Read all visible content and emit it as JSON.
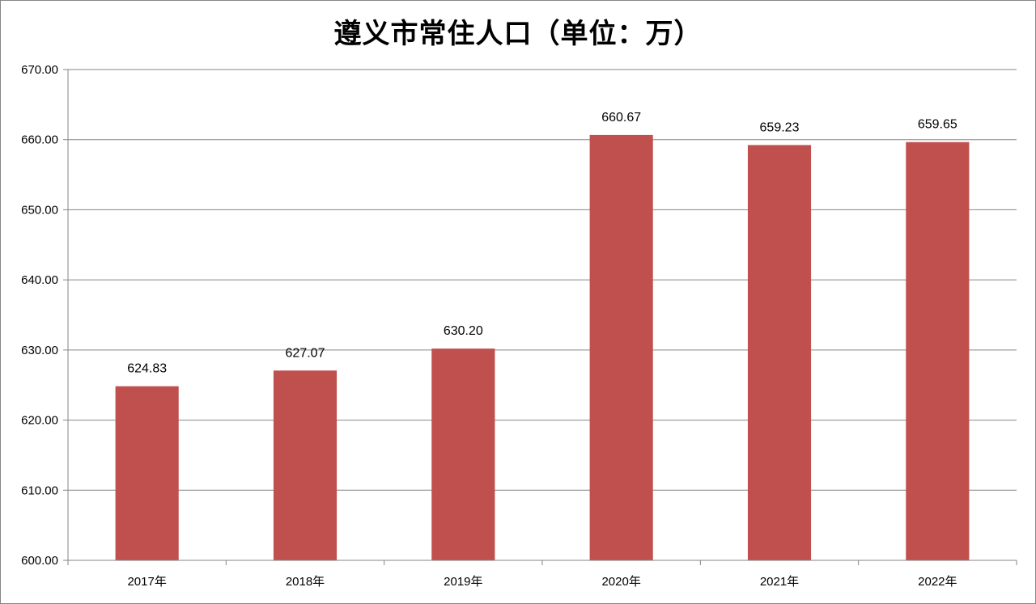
{
  "chart_data": {
    "type": "bar",
    "title": "遵义市常住人口（单位：万）",
    "categories": [
      "2017年",
      "2018年",
      "2019年",
      "2020年",
      "2021年",
      "2022年"
    ],
    "values": [
      624.83,
      627.07,
      630.2,
      660.67,
      659.23,
      659.65
    ],
    "data_labels": [
      "624.83",
      "627.07",
      "630.20",
      "660.67",
      "659.23",
      "659.65"
    ],
    "ylim": [
      600,
      670
    ],
    "yticks": [
      600,
      610,
      620,
      630,
      640,
      650,
      660,
      670
    ],
    "ytick_labels": [
      "600.00",
      "610.00",
      "620.00",
      "630.00",
      "640.00",
      "650.00",
      "660.00",
      "670.00"
    ],
    "xlabel": "",
    "ylabel": "",
    "grid": true,
    "legend": "none",
    "bar_color": "#c0504d",
    "grid_color": "#868686"
  }
}
